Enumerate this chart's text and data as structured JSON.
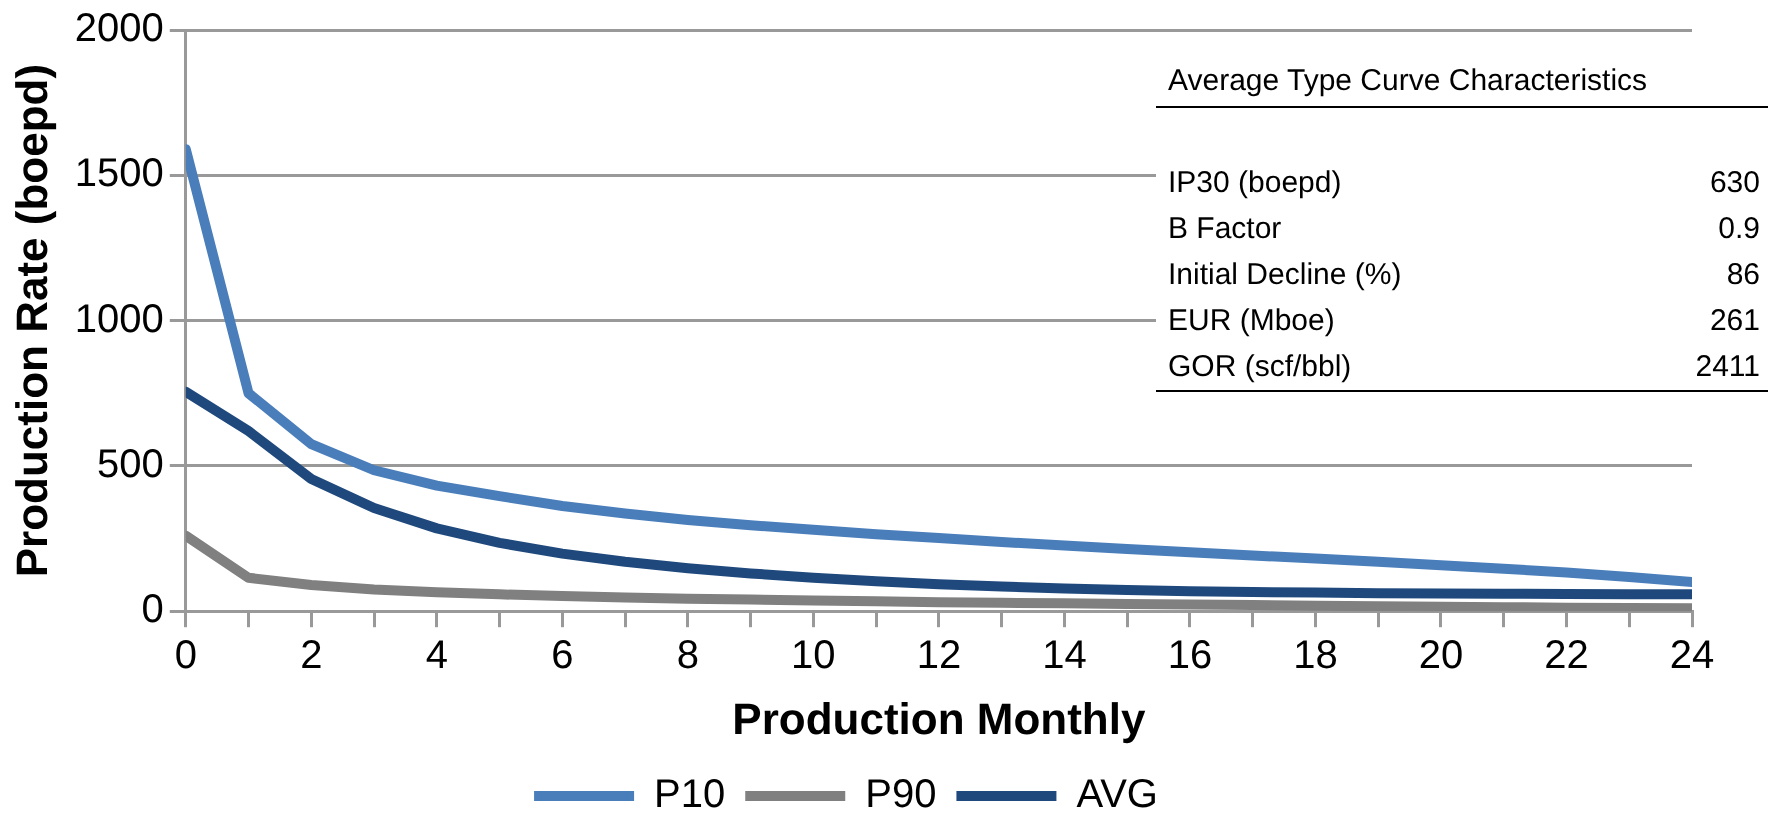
{
  "chart_data": {
    "type": "line",
    "xlabel": "Production Monthly",
    "ylabel": "Production Rate (boepd)",
    "x": [
      0,
      1,
      2,
      3,
      4,
      5,
      6,
      7,
      8,
      9,
      10,
      11,
      12,
      13,
      14,
      15,
      16,
      17,
      18,
      19,
      20,
      21,
      22,
      23,
      24
    ],
    "xlim": [
      0,
      24
    ],
    "xticks": [
      0,
      {
        "value": 1,
        "label": null
      },
      2,
      {
        "value": 3,
        "label": null
      },
      4,
      {
        "value": 5,
        "label": null
      },
      6,
      {
        "value": 7,
        "label": null
      },
      8,
      {
        "value": 9,
        "label": null
      },
      10,
      {
        "value": 11,
        "label": null
      },
      12,
      {
        "value": 13,
        "label": null
      },
      14,
      {
        "value": 15,
        "label": null
      },
      16,
      {
        "value": 17,
        "label": null
      },
      18,
      {
        "value": 19,
        "label": null
      },
      20,
      {
        "value": 21,
        "label": null
      },
      22,
      {
        "value": 23,
        "label": null
      },
      24
    ],
    "ylim": [
      0,
      2000
    ],
    "yticks": [
      0,
      500,
      1000,
      1500,
      2000
    ],
    "series": [
      {
        "name": "P10",
        "color": "#4a7ebb",
        "values": [
          1590,
          750,
          575,
          485,
          432,
          396,
          362,
          336,
          314,
          296,
          280,
          265,
          252,
          238,
          226,
          214,
          203,
          192,
          181,
          170,
          158,
          146,
          133,
          118,
          100
        ]
      },
      {
        "name": "P90",
        "color": "#808080",
        "values": [
          260,
          115,
          90,
          75,
          65,
          58,
          52,
          47,
          43,
          40,
          37,
          34,
          31,
          29,
          27,
          25,
          23,
          21,
          19,
          17,
          15,
          14,
          12,
          11,
          10
        ]
      },
      {
        "name": "AVG",
        "color": "#1f497d",
        "values": [
          755,
          620,
          455,
          355,
          285,
          235,
          198,
          170,
          148,
          130,
          115,
          103,
          93,
          85,
          78,
          73,
          69,
          66,
          64,
          62,
          61,
          60,
          59,
          58,
          58
        ]
      }
    ],
    "annotations": [
      "Average Type Curve Characteristics",
      "IP30 (boepd)",
      "630",
      "B Factor",
      "0.9",
      "Initial Decline (%)",
      "86",
      "EUR (Mboe)",
      "261",
      "GOR (scf/bbl)",
      "2411"
    ],
    "grid": "y",
    "legend": "bottom",
    "marker": "none",
    "line_style": "solid"
  }
}
